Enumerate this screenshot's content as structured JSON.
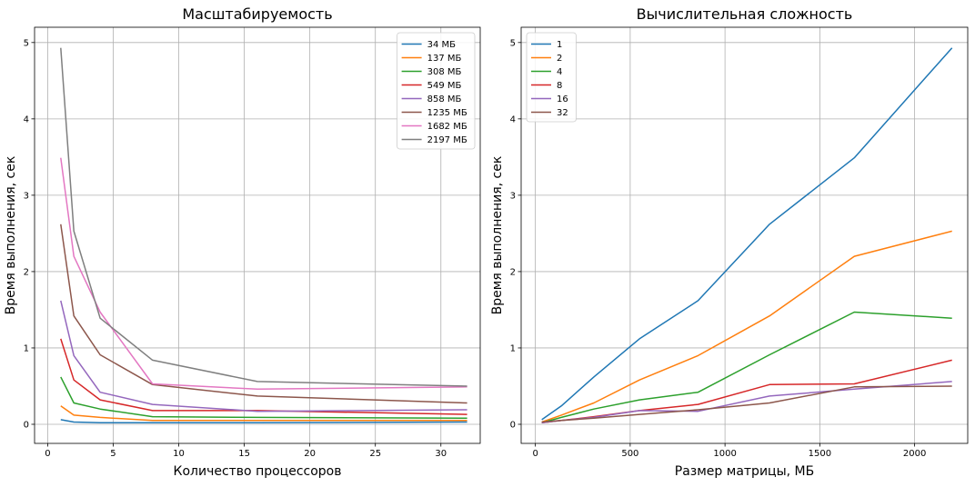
{
  "chart_data": [
    {
      "type": "line",
      "title": "Масштабируемость",
      "xlabel": "Количество процессоров",
      "ylabel": "Время выполнения, сек",
      "xlim": [
        -1,
        33
      ],
      "ylim": [
        -0.25,
        5.2
      ],
      "xticks": [
        0,
        5,
        10,
        15,
        20,
        25,
        30
      ],
      "yticks": [
        0,
        1,
        2,
        3,
        4,
        5
      ],
      "grid": true,
      "legend": "upper right",
      "x": [
        1,
        2,
        4,
        8,
        16,
        32
      ],
      "series": [
        {
          "name": "34 МБ",
          "color": "#1f77b4",
          "values": [
            0.06,
            0.03,
            0.02,
            0.02,
            0.02,
            0.03
          ]
        },
        {
          "name": "137 МБ",
          "color": "#ff7f0e",
          "values": [
            0.24,
            0.12,
            0.09,
            0.05,
            0.05,
            0.05
          ]
        },
        {
          "name": "308 МБ",
          "color": "#2ca02c",
          "values": [
            0.62,
            0.28,
            0.2,
            0.1,
            0.09,
            0.08
          ]
        },
        {
          "name": "549 МБ",
          "color": "#d62728",
          "values": [
            1.12,
            0.58,
            0.32,
            0.18,
            0.18,
            0.13
          ]
        },
        {
          "name": "858 МБ",
          "color": "#9467bd",
          "values": [
            1.62,
            0.9,
            0.42,
            0.26,
            0.17,
            0.19
          ]
        },
        {
          "name": "1235 МБ",
          "color": "#8c564b",
          "values": [
            2.62,
            1.42,
            0.91,
            0.52,
            0.37,
            0.28
          ]
        },
        {
          "name": "1682 МБ",
          "color": "#e377c2",
          "values": [
            3.49,
            2.2,
            1.47,
            0.53,
            0.46,
            0.49
          ]
        },
        {
          "name": "2197 МБ",
          "color": "#7f7f7f",
          "values": [
            4.93,
            2.53,
            1.39,
            0.84,
            0.56,
            0.5
          ]
        }
      ]
    },
    {
      "type": "line",
      "title": "Вычислительная сложность",
      "xlabel": "Размер матрицы, МБ",
      "ylabel": "Время выполнения, сек",
      "xlim": [
        -75,
        2280
      ],
      "ylim": [
        -0.25,
        5.2
      ],
      "xticks": [
        0,
        500,
        1000,
        1500,
        2000
      ],
      "yticks": [
        0,
        1,
        2,
        3,
        4,
        5
      ],
      "grid": true,
      "legend": "upper left",
      "x": [
        34,
        137,
        308,
        549,
        858,
        1235,
        1682,
        2197
      ],
      "series": [
        {
          "name": "1",
          "color": "#1f77b4",
          "values": [
            0.06,
            0.24,
            0.62,
            1.12,
            1.62,
            2.62,
            3.49,
            4.93
          ]
        },
        {
          "name": "2",
          "color": "#ff7f0e",
          "values": [
            0.03,
            0.12,
            0.28,
            0.58,
            0.9,
            1.42,
            2.2,
            2.53
          ]
        },
        {
          "name": "4",
          "color": "#2ca02c",
          "values": [
            0.02,
            0.09,
            0.2,
            0.32,
            0.42,
            0.91,
            1.47,
            1.39
          ]
        },
        {
          "name": "8",
          "color": "#d62728",
          "values": [
            0.02,
            0.05,
            0.1,
            0.18,
            0.26,
            0.52,
            0.53,
            0.84
          ]
        },
        {
          "name": "16",
          "color": "#9467bd",
          "values": [
            0.02,
            0.05,
            0.09,
            0.18,
            0.17,
            0.37,
            0.46,
            0.56
          ]
        },
        {
          "name": "32",
          "color": "#8c564b",
          "values": [
            0.03,
            0.05,
            0.08,
            0.13,
            0.19,
            0.28,
            0.49,
            0.5
          ]
        }
      ]
    }
  ]
}
